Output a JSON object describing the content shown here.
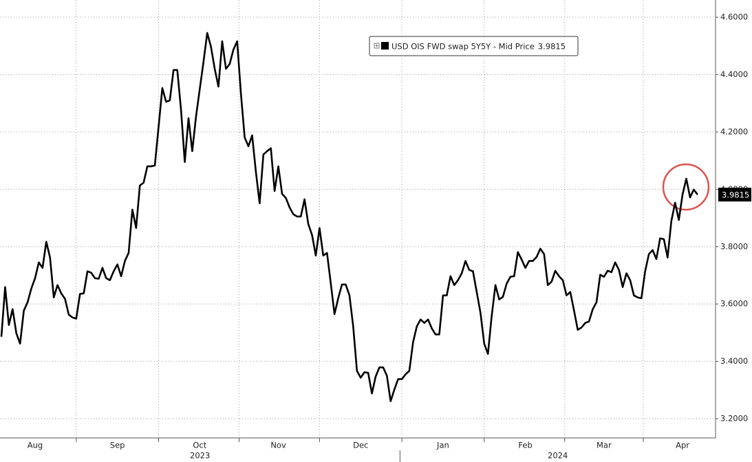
{
  "chart_data": {
    "type": "line",
    "series": [
      {
        "name": "USD OIS FWD swap 5Y5Y - Mid Price",
        "color": "#000000",
        "values": [
          3.486,
          3.659,
          3.527,
          3.582,
          3.498,
          3.462,
          3.577,
          3.606,
          3.654,
          3.69,
          3.745,
          3.726,
          3.817,
          3.762,
          3.623,
          3.666,
          3.637,
          3.618,
          3.563,
          3.553,
          3.549,
          3.635,
          3.637,
          3.714,
          3.709,
          3.69,
          3.688,
          3.726,
          3.69,
          3.683,
          3.714,
          3.738,
          3.697,
          3.75,
          3.778,
          3.929,
          3.865,
          4.013,
          4.023,
          4.08,
          4.08,
          4.083,
          4.217,
          4.353,
          4.305,
          4.31,
          4.416,
          4.416,
          4.277,
          4.095,
          4.248,
          4.133,
          4.253,
          4.349,
          4.444,
          4.545,
          4.497,
          4.42,
          4.358,
          4.516,
          4.42,
          4.437,
          4.487,
          4.516,
          4.334,
          4.181,
          4.15,
          4.188,
          4.061,
          3.951,
          4.121,
          4.133,
          4.143,
          3.994,
          4.08,
          3.984,
          3.97,
          3.937,
          3.913,
          3.905,
          3.905,
          3.965,
          3.879,
          3.841,
          3.769,
          3.865,
          3.769,
          3.778,
          3.673,
          3.565,
          3.62,
          3.668,
          3.668,
          3.63,
          3.522,
          3.367,
          3.343,
          3.362,
          3.36,
          3.288,
          3.347,
          3.379,
          3.379,
          3.35,
          3.261,
          3.302,
          3.338,
          3.338,
          3.355,
          3.367,
          3.467,
          3.522,
          3.546,
          3.534,
          3.546,
          3.515,
          3.494,
          3.494,
          3.63,
          3.63,
          3.697,
          3.666,
          3.683,
          3.707,
          3.75,
          3.719,
          3.714,
          3.642,
          3.57,
          3.462,
          3.426,
          3.558,
          3.666,
          3.616,
          3.625,
          3.671,
          3.695,
          3.697,
          3.781,
          3.755,
          3.726,
          3.75,
          3.75,
          3.764,
          3.793,
          3.774,
          3.666,
          3.678,
          3.716,
          3.697,
          3.683,
          3.63,
          3.642,
          3.577,
          3.51,
          3.518,
          3.534,
          3.539,
          3.582,
          3.606,
          3.702,
          3.695,
          3.716,
          3.711,
          3.745,
          3.719,
          3.659,
          3.707,
          3.683,
          3.63,
          3.623,
          3.62,
          3.714,
          3.774,
          3.788,
          3.757,
          3.829,
          3.826,
          3.762,
          3.889,
          3.953,
          3.893,
          3.982,
          4.037,
          3.972,
          3.999,
          3.9815
        ]
      }
    ],
    "categories": [
      null,
      null,
      null,
      null,
      null,
      null,
      null,
      null,
      null,
      "Aug",
      null,
      null,
      null,
      null,
      null,
      null,
      null,
      null,
      null,
      null,
      null,
      null,
      null,
      null,
      null,
      null,
      null,
      null,
      null,
      null,
      null,
      "Sep",
      null,
      null,
      null,
      null,
      null,
      null,
      null,
      null,
      null,
      null,
      null,
      null,
      null,
      null,
      null,
      null,
      null,
      null,
      null,
      null,
      null,
      "Oct",
      null,
      null,
      null,
      null,
      null,
      null,
      null,
      null,
      null,
      null,
      null,
      null,
      null,
      null,
      null,
      null,
      null,
      null,
      null,
      null,
      "Nov",
      null,
      null,
      null,
      null,
      null,
      null,
      null,
      null,
      null,
      null,
      null,
      null,
      null,
      null,
      null,
      null,
      null,
      null,
      null,
      null,
      null,
      "Dec",
      null,
      null,
      null,
      null,
      null,
      null,
      null,
      null,
      null,
      null,
      null,
      null,
      null,
      null,
      null,
      null,
      null,
      null,
      null,
      null,
      null,
      "Jan",
      null,
      null,
      null,
      null,
      null,
      null,
      null,
      null,
      null,
      null,
      null,
      null,
      null,
      null,
      null,
      null,
      null,
      null,
      null,
      null,
      null,
      "Feb",
      null,
      null,
      null,
      null,
      null,
      null,
      null,
      null,
      null,
      null,
      null,
      null,
      null,
      null,
      null,
      null,
      null,
      null,
      null,
      null,
      "Mar",
      null,
      null,
      null,
      null,
      null,
      null,
      null,
      null,
      null,
      null,
      null,
      null,
      null,
      null,
      null,
      null,
      null,
      null,
      null,
      null,
      "Apr",
      null,
      null,
      null,
      null
    ],
    "years": [
      "2023",
      "2023",
      "2023",
      "2023",
      "2023",
      "2023",
      "2023",
      "2023",
      "2023",
      "2023",
      "2023",
      "2023",
      "2023",
      "2023",
      "2023",
      "2023",
      "2023",
      "2023",
      "2023",
      "2023",
      "2023",
      "2023",
      "2023",
      "2023",
      "2023",
      "2023",
      "2023",
      "2023",
      "2023",
      "2023",
      "2023",
      "2023",
      "2023",
      "2023",
      "2023",
      "2023",
      "2023",
      "2023",
      "2023",
      "2023",
      "2023",
      "2023",
      "2023",
      "2023",
      "2023",
      "2023",
      "2023",
      "2023",
      "2023",
      "2023",
      "2023",
      "2023",
      "2023",
      "2023",
      "2023",
      "2023",
      "2023",
      "2023",
      "2023",
      "2023",
      "2023",
      "2023",
      "2023",
      "2023",
      "2023",
      "2023",
      "2023",
      "2023",
      "2023",
      "2023",
      "2023",
      "2023",
      "2023",
      "2023",
      "2023",
      "2023",
      "2023",
      "2023",
      "2023",
      "2023",
      "2023",
      "2023",
      "2023",
      "2023",
      "2023",
      "2023",
      "2023",
      "2023",
      "2023",
      "2023",
      "2023",
      "2023",
      "2023",
      "2023",
      "2023",
      "2023",
      "2023",
      "2023",
      "2023",
      "2023",
      "2023",
      "2023",
      "2023",
      "2023",
      "2023",
      "2023",
      "2023",
      "2024",
      "2024",
      "2024",
      "2024",
      "2024",
      "2024",
      "2024",
      "2024",
      "2024",
      "2024",
      "2024",
      "2024",
      "2024",
      "2024",
      "2024",
      "2024",
      "2024",
      "2024",
      "2024",
      "2024",
      "2024",
      "2024",
      "2024",
      "2024",
      "2024",
      "2024",
      "2024",
      "2024",
      "2024",
      "2024",
      "2024",
      "2024",
      "2024",
      "2024",
      "2024",
      "2024",
      "2024",
      "2024",
      "2024",
      "2024",
      "2024",
      "2024",
      "2024",
      "2024",
      "2024",
      "2024",
      "2024",
      "2024",
      "2024",
      "2024",
      "2024",
      "2024",
      "2024",
      "2024",
      "2024",
      "2024",
      "2024",
      "2024",
      "2024",
      "2024",
      "2024",
      "2024",
      "2024",
      "2024",
      "2024",
      "2024",
      "2024",
      "2024",
      "2024",
      "2024",
      "2024",
      "2024",
      "2024",
      "2024",
      "2024",
      "2024",
      "2024",
      "2024",
      "2024",
      "2024"
    ],
    "ylim": [
      3.133,
      4.66
    ],
    "yticks": [
      {
        "value": 3.2,
        "label": "3.2000"
      },
      {
        "value": 3.4,
        "label": "3.4000"
      },
      {
        "value": 3.6,
        "label": "3.6000"
      },
      {
        "value": 3.8,
        "label": "3.8000"
      },
      {
        "value": 4.0,
        "label": "4.0000"
      },
      {
        "value": 4.2,
        "label": "4.2000"
      },
      {
        "value": 4.4,
        "label": "4.4000"
      },
      {
        "value": 4.6,
        "label": "4.6000"
      }
    ],
    "grid": true,
    "y_axis_side": "right",
    "legend_position": "top"
  }
}
